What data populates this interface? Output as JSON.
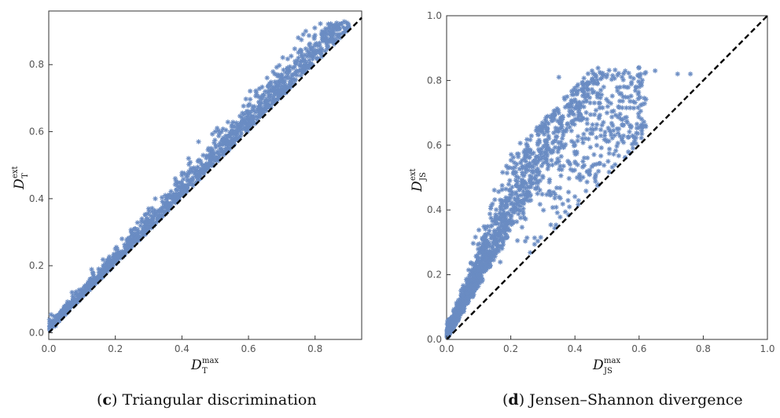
{
  "chart_data": [
    {
      "type": "scatter",
      "caption_letter": "c",
      "caption_text": "Triangular discrimination",
      "xlabel": {
        "main": "D",
        "sub": "T",
        "sup": "max"
      },
      "ylabel": {
        "main": "D",
        "sub": "T",
        "sup": "ext"
      },
      "xlim": [
        0,
        0.94
      ],
      "ylim": [
        -0.02,
        0.96
      ],
      "x_ticks": [
        "0.0",
        "0.2",
        "0.4",
        "0.6",
        "0.8"
      ],
      "y_ticks": [
        "0.0",
        "0.2",
        "0.4",
        "0.6",
        "0.8"
      ],
      "marker": "*",
      "point_color": "#6a8cc3",
      "reference_line": {
        "style": "dashed",
        "color": "#000000",
        "from": [
          0,
          0
        ],
        "to": [
          0.94,
          0.94
        ]
      },
      "series_sample": [
        [
          0.02,
          0.02
        ],
        [
          0.05,
          0.06
        ],
        [
          0.08,
          0.1
        ],
        [
          0.1,
          0.13
        ],
        [
          0.12,
          0.15
        ],
        [
          0.15,
          0.19
        ],
        [
          0.18,
          0.22
        ],
        [
          0.2,
          0.25
        ],
        [
          0.22,
          0.28
        ],
        [
          0.25,
          0.3
        ],
        [
          0.28,
          0.34
        ],
        [
          0.3,
          0.37
        ],
        [
          0.32,
          0.4
        ],
        [
          0.35,
          0.41
        ],
        [
          0.38,
          0.46
        ],
        [
          0.4,
          0.47
        ],
        [
          0.42,
          0.52
        ],
        [
          0.45,
          0.57
        ],
        [
          0.48,
          0.55
        ],
        [
          0.5,
          0.6
        ],
        [
          0.55,
          0.62
        ],
        [
          0.6,
          0.66
        ],
        [
          0.65,
          0.72
        ],
        [
          0.7,
          0.77
        ],
        [
          0.75,
          0.82
        ],
        [
          0.8,
          0.86
        ],
        [
          0.85,
          0.88
        ],
        [
          0.9,
          0.92
        ]
      ]
    },
    {
      "type": "scatter",
      "caption_letter": "d",
      "caption_text": "Jensen–Shannon divergence",
      "xlabel": {
        "main": "D",
        "sub": "JS",
        "sup": "max"
      },
      "ylabel": {
        "main": "D",
        "sub": "JS",
        "sup": "ext"
      },
      "xlim": [
        0,
        1.0
      ],
      "ylim": [
        0,
        1.0
      ],
      "x_ticks": [
        "0.0",
        "0.2",
        "0.4",
        "0.6",
        "0.8",
        "1.0"
      ],
      "y_ticks": [
        "0.0",
        "0.2",
        "0.4",
        "0.6",
        "0.8",
        "1.0"
      ],
      "marker": "*",
      "point_color": "#6a8cc3",
      "reference_line": {
        "style": "dashed",
        "color": "#000000",
        "from": [
          0,
          0
        ],
        "to": [
          1.0,
          1.0
        ]
      },
      "series_sample": [
        [
          0.02,
          0.04
        ],
        [
          0.05,
          0.1
        ],
        [
          0.08,
          0.15
        ],
        [
          0.1,
          0.2
        ],
        [
          0.12,
          0.25
        ],
        [
          0.15,
          0.3
        ],
        [
          0.18,
          0.35
        ],
        [
          0.2,
          0.4
        ],
        [
          0.25,
          0.45
        ],
        [
          0.3,
          0.5
        ],
        [
          0.35,
          0.55
        ],
        [
          0.4,
          0.6
        ],
        [
          0.45,
          0.65
        ],
        [
          0.5,
          0.7
        ],
        [
          0.55,
          0.75
        ],
        [
          0.6,
          0.78
        ],
        [
          0.35,
          0.81
        ],
        [
          0.6,
          0.84
        ],
        [
          0.65,
          0.83
        ],
        [
          0.72,
          0.82
        ],
        [
          0.76,
          0.82
        ]
      ]
    }
  ]
}
